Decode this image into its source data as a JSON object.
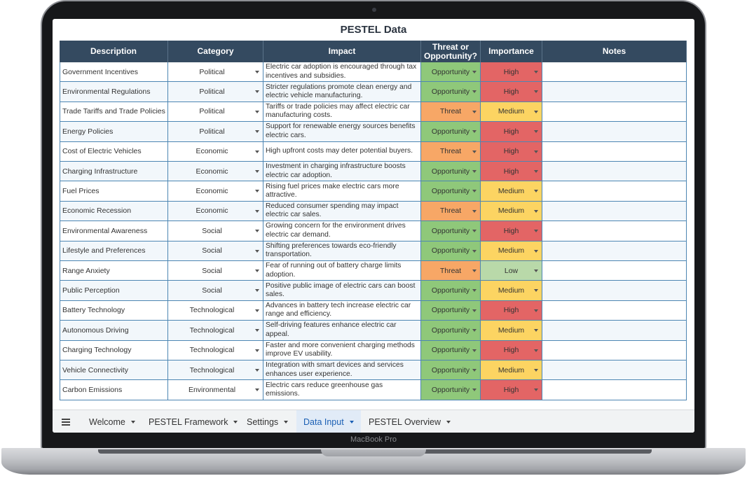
{
  "laptop": {
    "label": "MacBook Pro"
  },
  "sheet": {
    "title": "PESTEL Data"
  },
  "table": {
    "columns": [
      "Description",
      "Category",
      "Impact",
      "Threat or Opportunity?",
      "Importance",
      "Notes"
    ],
    "rows": [
      [
        "Government Incentives",
        "Political",
        "Electric car adoption is encouraged through tax incentives and subsidies.",
        "Opportunity",
        "High"
      ],
      [
        "Environmental Regulations",
        "Political",
        "Stricter regulations promote clean energy and electric vehicle manufacturing.",
        "Opportunity",
        "High"
      ],
      [
        "Trade Tariffs and Trade Policies",
        "Political",
        "Tariffs or trade policies may affect electric car manufacturing costs.",
        "Threat",
        "Medium"
      ],
      [
        "Energy Policies",
        "Political",
        "Support for renewable energy sources benefits electric cars.",
        "Opportunity",
        "High"
      ],
      [
        "Cost of Electric Vehicles",
        "Economic",
        "High upfront costs may deter potential buyers.",
        "Threat",
        "High"
      ],
      [
        "Charging Infrastructure",
        "Economic",
        "Investment in charging infrastructure boosts electric car adoption.",
        "Opportunity",
        "High"
      ],
      [
        "Fuel Prices",
        "Economic",
        "Rising fuel prices make electric cars more attractive.",
        "Opportunity",
        "Medium"
      ],
      [
        "Economic Recession",
        "Economic",
        "Reduced consumer spending may impact electric car sales.",
        "Threat",
        "Medium"
      ],
      [
        "Environmental Awareness",
        "Social",
        "Growing concern for the environment drives electric car demand.",
        "Opportunity",
        "High"
      ],
      [
        "Lifestyle and Preferences",
        "Social",
        "Shifting preferences towards eco-friendly transportation.",
        "Opportunity",
        "Medium"
      ],
      [
        "Range Anxiety",
        "Social",
        "Fear of running out of battery charge limits adoption.",
        "Threat",
        "Low"
      ],
      [
        "Public Perception",
        "Social",
        "Positive public image of electric cars can boost sales.",
        "Opportunity",
        "Medium"
      ],
      [
        "Battery Technology",
        "Technological",
        "Advances in battery tech increase electric car range and efficiency.",
        "Opportunity",
        "High"
      ],
      [
        "Autonomous Driving",
        "Technological",
        "Self-driving features enhance electric car appeal.",
        "Opportunity",
        "Medium"
      ],
      [
        "Charging Technology",
        "Technological",
        "Faster and more convenient charging methods improve EV usability.",
        "Opportunity",
        "High"
      ],
      [
        "Vehicle Connectivity",
        "Technological",
        "Integration with smart devices and services enhances user experience.",
        "Opportunity",
        "Medium"
      ],
      [
        "Carbon Emissions",
        "Environmental",
        "Electric cars reduce greenhouse gas emissions.",
        "Opportunity",
        "High"
      ]
    ],
    "status_colors": {
      "Opportunity": "#8fc87a",
      "Threat": "#f7a766",
      "High": "#e36565",
      "Medium": "#fcd462",
      "Low": "#b9d9a9"
    }
  },
  "tabs": {
    "items": [
      "Welcome",
      "PESTEL Framework",
      "Settings",
      "Data Input",
      "PESTEL Overview"
    ],
    "active": 3
  }
}
